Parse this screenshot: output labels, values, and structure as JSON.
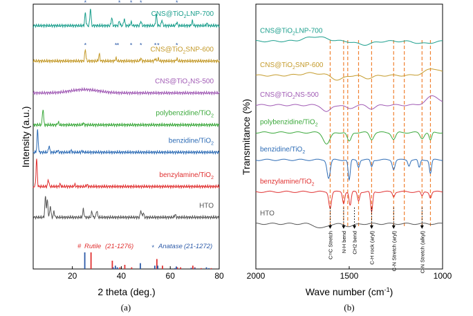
{
  "colors": {
    "cns_lnp": "#1a9e8c",
    "cns_snp": "#c49a2a",
    "cns_ns": "#a05ab4",
    "polybenzidine": "#3aa83a",
    "benzidine": "#2c6bb5",
    "benzylamine": "#e03030",
    "hto": "#555555",
    "rutile": "#e03030",
    "anatase": "#2c5aa8",
    "dash": "#f08030"
  },
  "chart_data": [
    {
      "type": "line",
      "panel_label": "(a)",
      "xlabel": "2 theta (deg.)",
      "ylabel": "Intensity (a.u.)",
      "xlim": [
        4,
        80
      ],
      "xticks": [
        "20",
        "40",
        "60",
        "80"
      ],
      "series": [
        {
          "name": "CNS@TiO2LNP-700",
          "name_main": "CNS@TiO",
          "name_sub": "2",
          "name_tail": "LNP-700",
          "color_key": "cns_lnp",
          "baseline_norm": 0.07,
          "peaks": [
            [
              25.3,
              0.055
            ],
            [
              27.4,
              0.075
            ],
            [
              36.1,
              0.035
            ],
            [
              39.2,
              0.02
            ],
            [
              41.2,
              0.03
            ],
            [
              44.0,
              0.015
            ],
            [
              48.0,
              0.02
            ],
            [
              54.3,
              0.05
            ],
            [
              56.6,
              0.025
            ],
            [
              62.7,
              0.015
            ],
            [
              69.0,
              0.02
            ],
            [
              75.0,
              0.01
            ]
          ]
        },
        {
          "name": "CNS@TiO2SNP-600",
          "name_main": "CNS@TiO",
          "name_sub": "2",
          "name_tail": "SNP-600",
          "color_key": "cns_snp",
          "baseline_norm": 0.225,
          "peaks": [
            [
              25.3,
              0.05
            ],
            [
              31.0,
              0.03
            ],
            [
              37.8,
              0.012
            ],
            [
              48.0,
              0.012
            ],
            [
              53.9,
              0.01
            ],
            [
              55.1,
              0.01
            ],
            [
              62.7,
              0.01
            ]
          ]
        },
        {
          "name": "CNS@TiO2NS-500",
          "name_main": "CNS@TiO",
          "name_sub": "2",
          "name_tail": "NS-500",
          "color_key": "cns_ns",
          "baseline_norm": 0.365,
          "peaks": []
        },
        {
          "name": "polybenzidine/TiO2",
          "name_main": "polybenzidine/TiO",
          "name_sub": "2",
          "name_tail": "",
          "color_key": "polybenzidine",
          "baseline_norm": 0.505,
          "peaks": [
            [
              8.0,
              0.07
            ],
            [
              14.2,
              0.012
            ],
            [
              24.5,
              0.008
            ]
          ]
        },
        {
          "name": "benzidine/TiO2",
          "name_main": "benzidine/TiO",
          "name_sub": "2",
          "name_tail": "",
          "color_key": "benzidine",
          "baseline_norm": 0.625,
          "peaks": [
            [
              5.8,
              0.095
            ],
            [
              10.5,
              0.028
            ],
            [
              14.0,
              0.008
            ],
            [
              19.5,
              0.008
            ],
            [
              24.0,
              0.006
            ]
          ]
        },
        {
          "name": "benzylamine/TiO2",
          "name_main": "benzylamine/TiO",
          "name_sub": "2",
          "name_tail": "",
          "color_key": "benzylamine",
          "baseline_norm": 0.775,
          "peaks": [
            [
              5.4,
              0.12
            ],
            [
              10.2,
              0.03
            ],
            [
              15.0,
              0.01
            ],
            [
              21.0,
              0.008
            ],
            [
              26.0,
              0.008
            ]
          ]
        },
        {
          "name": "HTO",
          "name_main": "HTO",
          "name_sub": "",
          "name_tail": "",
          "color_key": "hto",
          "baseline_norm": 0.91,
          "peaks": [
            [
              9.0,
              0.09
            ],
            [
              9.8,
              0.075
            ],
            [
              11.0,
              0.05
            ],
            [
              12.5,
              0.025
            ],
            [
              24.5,
              0.035
            ],
            [
              28.0,
              0.025
            ],
            [
              30.0,
              0.03
            ],
            [
              48.0,
              0.03
            ],
            [
              49.0,
              0.02
            ],
            [
              62.0,
              0.012
            ]
          ]
        }
      ],
      "reference": {
        "rutile_label": "Rutile",
        "rutile_card": "(21-1276)",
        "rutile_symbol": "#",
        "anatase_label": "Anatase",
        "anatase_card": "(21-1272)",
        "anatase_symbol": "*",
        "rutile_lines": [
          [
            27.4,
            1.0
          ],
          [
            36.1,
            0.5
          ],
          [
            39.2,
            0.1
          ],
          [
            41.2,
            0.25
          ],
          [
            44.0,
            0.1
          ],
          [
            54.3,
            0.6
          ],
          [
            56.6,
            0.2
          ],
          [
            62.7,
            0.1
          ],
          [
            64.0,
            0.1
          ],
          [
            69.0,
            0.2
          ],
          [
            69.8,
            0.1
          ],
          [
            72.4,
            0.05
          ],
          [
            76.5,
            0.05
          ]
        ],
        "anatase_lines": [
          [
            25.3,
            1.0
          ],
          [
            36.9,
            0.1
          ],
          [
            37.8,
            0.2
          ],
          [
            38.6,
            0.1
          ],
          [
            48.0,
            0.35
          ],
          [
            53.9,
            0.2
          ],
          [
            55.1,
            0.2
          ],
          [
            62.1,
            0.05
          ],
          [
            62.7,
            0.15
          ],
          [
            68.8,
            0.07
          ],
          [
            70.3,
            0.07
          ],
          [
            75.0,
            0.1
          ],
          [
            76.0,
            0.05
          ]
        ],
        "lnp_rutile_marks": [
          27.4,
          36.1,
          41.2,
          54.3,
          56.6,
          69.0,
          75.0
        ],
        "lnp_anatase_marks": [
          25.3,
          39.2,
          44.0,
          48.0,
          62.7
        ],
        "snp_anatase_marks": [
          25.3,
          37.8,
          38.6,
          44.0,
          48.0,
          53.9,
          55.1,
          62.7
        ]
      }
    },
    {
      "type": "line",
      "panel_label": "(b)",
      "xlabel": "Wave number (cm",
      "xlabel_sup": "-1",
      "xlabel_tail": ")",
      "ylabel": "Transmitance (%)",
      "xlim": [
        2000,
        1000
      ],
      "xticks": [
        "2000",
        "1500",
        "1000"
      ],
      "dashed_positions": [
        1602,
        1530,
        1508,
        1450,
        1380,
        1262,
        1205,
        1110,
        1065
      ],
      "annotations": [
        {
          "text": "C=C Stretch",
          "x": 1602
        },
        {
          "text": "N-H bend",
          "x": 1530
        },
        {
          "text": "CH2 bend",
          "x": 1472
        },
        {
          "text": "C-H rock (aryl)",
          "x": 1380
        },
        {
          "text": "C-N Stretch (aryl)",
          "x": 1262
        },
        {
          "text": "C-N Stretch (alkyl)",
          "x": 1110
        }
      ],
      "series": [
        {
          "name": "CNS@TiO2LNP-700",
          "name_main": "CNS@TiO",
          "name_sub": "2",
          "name_tail": "LNP-700",
          "color_key": "cns_lnp",
          "baseline_norm": 0.12,
          "dips": [
            [
              1680,
              -0.02,
              80
            ],
            [
              1420,
              0.015,
              60
            ],
            [
              1100,
              0.01,
              60
            ]
          ]
        },
        {
          "name": "CNS@TiO2SNP-600",
          "name_main": "CNS@TiO",
          "name_sub": "2",
          "name_tail": "SNP-600",
          "color_key": "cns_snp",
          "baseline_norm": 0.27,
          "dips": [
            [
              1700,
              -0.01,
              80
            ],
            [
              1560,
              0.02,
              40
            ],
            [
              1400,
              0.012,
              40
            ],
            [
              1050,
              -0.03,
              60
            ]
          ]
        },
        {
          "name": "CNS@TiO2NS-500",
          "name_main": "CNS@TiO",
          "name_sub": "2",
          "name_tail": "NS-500",
          "color_key": "cns_ns",
          "baseline_norm": 0.4,
          "dips": [
            [
              1620,
              0.03,
              30
            ],
            [
              1500,
              0.015,
              30
            ],
            [
              1380,
              0.015,
              30
            ],
            [
              1050,
              -0.04,
              50
            ]
          ]
        },
        {
          "name": "polybenzidine/TiO2",
          "name_main": "polybenzidine/TiO",
          "name_sub": "2",
          "name_tail": "",
          "color_key": "polybenzidine",
          "baseline_norm": 0.52,
          "dips": [
            [
              1620,
              0.05,
              25
            ],
            [
              1500,
              0.04,
              15
            ],
            [
              1380,
              0.03,
              15
            ],
            [
              1262,
              0.03,
              15
            ],
            [
              1110,
              0.025,
              15
            ],
            [
              1065,
              0.035,
              10
            ]
          ]
        },
        {
          "name": "benzidine/TiO2",
          "name_main": "benzidine/TiO",
          "name_sub": "2",
          "name_tail": "",
          "color_key": "benzidine",
          "baseline_norm": 0.64,
          "dips": [
            [
              1610,
              0.08,
              12
            ],
            [
              1500,
              0.09,
              8
            ],
            [
              1450,
              0.03,
              8
            ],
            [
              1380,
              0.03,
              8
            ],
            [
              1262,
              0.04,
              10
            ],
            [
              1180,
              0.025,
              8
            ],
            [
              1125,
              0.035,
              8
            ],
            [
              1065,
              0.06,
              8
            ]
          ]
        },
        {
          "name": "benzylamine/TiO2",
          "name_main": "benzylamine/TiO",
          "name_sub": "2",
          "name_tail": "",
          "color_key": "benzylamine",
          "baseline_norm": 0.78,
          "dips": [
            [
              1602,
              0.07,
              10
            ],
            [
              1530,
              0.05,
              8
            ],
            [
              1495,
              0.06,
              8
            ],
            [
              1450,
              0.04,
              8
            ],
            [
              1380,
              0.09,
              8
            ],
            [
              1262,
              0.02,
              8
            ],
            [
              1110,
              0.02,
              8
            ],
            [
              1065,
              0.025,
              8
            ]
          ]
        },
        {
          "name": "HTO",
          "name_main": "HTO",
          "name_sub": "",
          "name_tail": "",
          "color_key": "hto",
          "baseline_norm": 0.92,
          "dips": [
            [
              1650,
              0.02,
              40
            ],
            [
              1500,
              0.01,
              40
            ]
          ]
        }
      ]
    }
  ]
}
